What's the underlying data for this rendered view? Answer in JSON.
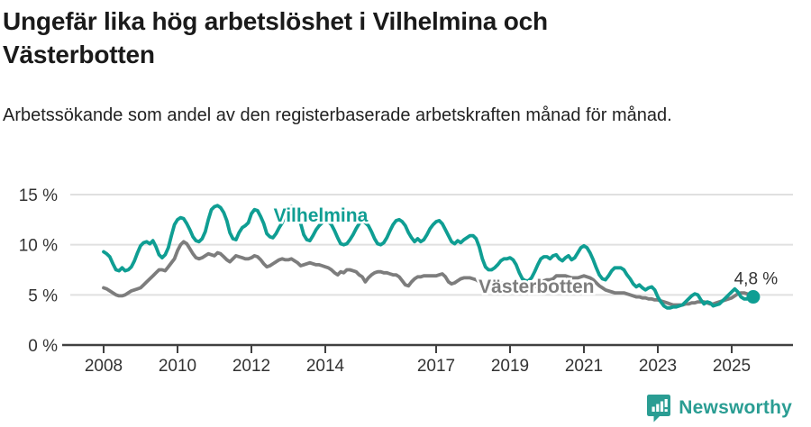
{
  "header": {
    "title": "Ungefär lika hög arbetslöshet i Vilhelmina och Västerbotten",
    "subtitle": "Arbetssökande som andel av den registerbaserade arbetskraften månad för månad."
  },
  "footer": {
    "brand": "Newsworthy",
    "logo_icon": "bar-chart-speech-bubble-icon"
  },
  "colors": {
    "vilhelmina_line": "#0f9e93",
    "vasterbotten_line": "#7d7d7d",
    "axis": "#404040",
    "gridline": "#e0e0e0",
    "tick_label": "#333333",
    "annotation_text": "#333333",
    "brand_teal": "#2a9d93",
    "title_text": "#1a1a1a"
  },
  "chart_data": {
    "type": "line",
    "unit": "%",
    "x_start_year": 2008,
    "x_end_label": "2025-08",
    "points_per_year": 12,
    "ylim": [
      0,
      15
    ],
    "grid": "horizontal-only",
    "legend_position": "inline-labels",
    "yticks": [
      {
        "value": 0,
        "label": "0 %"
      },
      {
        "value": 5,
        "label": "5 %"
      },
      {
        "value": 10,
        "label": "10 %"
      },
      {
        "value": 15,
        "label": "15 %"
      }
    ],
    "xticks": [
      {
        "value": 2008,
        "label": "2008"
      },
      {
        "value": 2010,
        "label": "2010"
      },
      {
        "value": 2012,
        "label": "2012"
      },
      {
        "value": 2014,
        "label": "2014"
      },
      {
        "value": 2017,
        "label": "2017"
      },
      {
        "value": 2019,
        "label": "2019"
      },
      {
        "value": 2021,
        "label": "2021"
      },
      {
        "value": 2023,
        "label": "2023"
      },
      {
        "value": 2025,
        "label": "2025"
      }
    ],
    "series": [
      {
        "name": "Vilhelmina",
        "color_key": "vilhelmina_line",
        "values": [
          9.3,
          9.1,
          8.8,
          8.1,
          7.5,
          7.4,
          7.7,
          7.4,
          7.5,
          7.8,
          8.4,
          9.2,
          9.9,
          10.2,
          10.3,
          10.1,
          10.4,
          9.8,
          9.0,
          8.7,
          9.0,
          9.7,
          10.9,
          12.0,
          12.5,
          12.7,
          12.6,
          12.1,
          11.5,
          10.8,
          10.4,
          10.3,
          10.6,
          11.3,
          12.5,
          13.5,
          13.8,
          13.9,
          13.7,
          13.2,
          12.4,
          11.2,
          10.6,
          10.5,
          11.2,
          11.7,
          11.9,
          12.2,
          13.1,
          13.5,
          13.4,
          12.8,
          12.1,
          11.1,
          10.8,
          10.7,
          11.1,
          11.7,
          12.2,
          13.0,
          13.6,
          13.8,
          13.5,
          12.9,
          12.1,
          11.0,
          10.5,
          10.4,
          10.9,
          11.5,
          11.9,
          12.2,
          12.4,
          12.3,
          12.0,
          11.4,
          10.7,
          10.1,
          10.0,
          10.1,
          10.5,
          11.0,
          11.6,
          12.1,
          12.4,
          12.2,
          11.9,
          11.3,
          10.6,
          10.1,
          10.0,
          10.2,
          10.7,
          11.4,
          12.0,
          12.4,
          12.5,
          12.3,
          11.9,
          11.2,
          10.7,
          10.3,
          10.6,
          10.3,
          10.5,
          11.0,
          11.6,
          12.0,
          12.3,
          12.4,
          12.1,
          11.5,
          10.9,
          10.3,
          10.1,
          10.4,
          10.2,
          10.5,
          10.7,
          10.9,
          10.9,
          10.6,
          9.8,
          8.6,
          7.8,
          7.5,
          7.5,
          7.7,
          8.0,
          8.4,
          8.6,
          8.6,
          8.7,
          8.5,
          8.0,
          7.2,
          6.6,
          6.4,
          6.4,
          6.7,
          7.3,
          8.0,
          8.6,
          8.8,
          8.8,
          8.6,
          8.9,
          9.0,
          8.6,
          8.4,
          8.7,
          8.9,
          8.5,
          8.7,
          9.2,
          9.7,
          9.9,
          9.7,
          9.2,
          8.5,
          7.7,
          7.0,
          6.6,
          6.5,
          6.9,
          7.4,
          7.7,
          7.7,
          7.7,
          7.5,
          7.0,
          6.6,
          6.1,
          5.8,
          6.0,
          5.7,
          5.5,
          5.7,
          5.8,
          5.5,
          4.8,
          4.3,
          3.9,
          3.7,
          3.7,
          3.8,
          3.8,
          3.9,
          4.0,
          4.3,
          4.6,
          4.9,
          5.1,
          5.0,
          4.5,
          4.1,
          4.3,
          4.2,
          3.9,
          4.0,
          4.1,
          4.4,
          4.7,
          5.0,
          5.3,
          5.6,
          5.3,
          4.8,
          4.6,
          4.6,
          4.7,
          4.8
        ]
      },
      {
        "name": "Västerbotten",
        "color_key": "vasterbotten_line",
        "values": [
          5.7,
          5.6,
          5.4,
          5.2,
          5.0,
          4.9,
          4.9,
          5.0,
          5.2,
          5.4,
          5.5,
          5.6,
          5.7,
          6.0,
          6.3,
          6.6,
          6.9,
          7.2,
          7.5,
          7.5,
          7.4,
          7.8,
          8.2,
          8.6,
          9.4,
          10.0,
          10.3,
          10.1,
          9.6,
          9.1,
          8.7,
          8.6,
          8.7,
          8.9,
          9.1,
          9.0,
          8.9,
          9.2,
          9.1,
          8.8,
          8.5,
          8.3,
          8.6,
          8.9,
          8.8,
          8.7,
          8.6,
          8.6,
          8.7,
          8.9,
          8.8,
          8.5,
          8.1,
          7.8,
          7.9,
          8.1,
          8.3,
          8.5,
          8.6,
          8.5,
          8.5,
          8.6,
          8.4,
          8.2,
          7.9,
          8.0,
          8.1,
          8.2,
          8.1,
          8.0,
          8.0,
          7.9,
          7.8,
          7.7,
          7.5,
          7.2,
          7.0,
          7.3,
          7.2,
          7.5,
          7.5,
          7.4,
          7.3,
          7.0,
          6.8,
          6.3,
          6.7,
          7.0,
          7.2,
          7.3,
          7.3,
          7.2,
          7.2,
          7.1,
          7.0,
          7.0,
          6.8,
          6.4,
          6.0,
          5.9,
          6.3,
          6.6,
          6.8,
          6.8,
          6.9,
          6.9,
          6.9,
          6.9,
          6.9,
          7.0,
          7.1,
          6.8,
          6.3,
          6.1,
          6.2,
          6.4,
          6.6,
          6.7,
          6.7,
          6.7,
          6.6,
          6.5,
          6.3,
          6.1,
          5.9,
          5.8,
          5.8,
          5.9,
          6.0,
          6.1,
          6.2,
          6.2,
          6.2,
          6.1,
          6.0,
          5.8,
          5.7,
          5.6,
          5.7,
          5.7,
          5.8,
          6.0,
          6.2,
          6.4,
          6.5,
          6.5,
          6.6,
          6.9,
          6.9,
          6.9,
          6.9,
          6.8,
          6.7,
          6.7,
          6.7,
          6.8,
          6.9,
          6.8,
          6.7,
          6.5,
          6.2,
          5.9,
          5.7,
          5.5,
          5.4,
          5.3,
          5.2,
          5.2,
          5.2,
          5.2,
          5.1,
          5.0,
          4.9,
          4.8,
          4.8,
          4.7,
          4.7,
          4.6,
          4.6,
          4.5,
          4.5,
          4.4,
          4.3,
          4.2,
          4.1,
          4.0,
          4.0,
          4.0,
          4.0,
          4.1,
          4.1,
          4.2,
          4.2,
          4.3,
          4.3,
          4.3,
          4.2,
          4.1,
          4.1,
          4.2,
          4.3,
          4.4,
          4.5,
          4.6,
          4.7,
          4.9,
          5.1,
          5.2,
          5.2,
          5.1,
          5.0,
          4.9
        ]
      }
    ],
    "series_labels": [
      {
        "series": "Vilhelmina",
        "text": "Vilhelmina",
        "x": 2012.6,
        "y": 12.3
      },
      {
        "series": "Västerbotten",
        "text": "Västerbotten",
        "x": 2018.15,
        "y": 5.2
      }
    ],
    "end_annotation": {
      "series": "Vilhelmina",
      "label": "4,8 %",
      "value": 4.8
    }
  }
}
